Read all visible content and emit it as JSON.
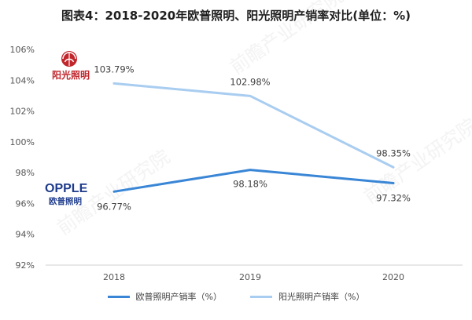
{
  "chart_data": {
    "type": "line",
    "title": "图表4：2018-2020年欧普照明、阳光照明产销率对比(单位：%)",
    "categories": [
      "2018",
      "2019",
      "2020"
    ],
    "series": [
      {
        "name": "欧普照明产销率（%）",
        "color": "#3a86d6",
        "values": [
          96.77,
          98.18,
          97.32
        ],
        "labels": [
          "96.77%",
          "98.18%",
          "97.32%"
        ]
      },
      {
        "name": "阳光照明产销率（%）",
        "color": "#a9cdf0",
        "values": [
          103.79,
          102.98,
          98.35
        ],
        "labels": [
          "103.79%",
          "102.98%",
          "98.35%"
        ]
      }
    ],
    "ylim": [
      92,
      106
    ],
    "yticks": [
      92,
      94,
      96,
      98,
      100,
      102,
      104,
      106
    ],
    "ytick_labels": [
      "92%",
      "94%",
      "96%",
      "98%",
      "100%",
      "102%",
      "104%",
      "106%"
    ],
    "xlabel": "",
    "ylabel": "",
    "grid": false,
    "legend_position": "bottom"
  },
  "logos": {
    "sunshine": "阳光照明",
    "opple": "OPPLE",
    "opple_cn": "欧普照明"
  }
}
